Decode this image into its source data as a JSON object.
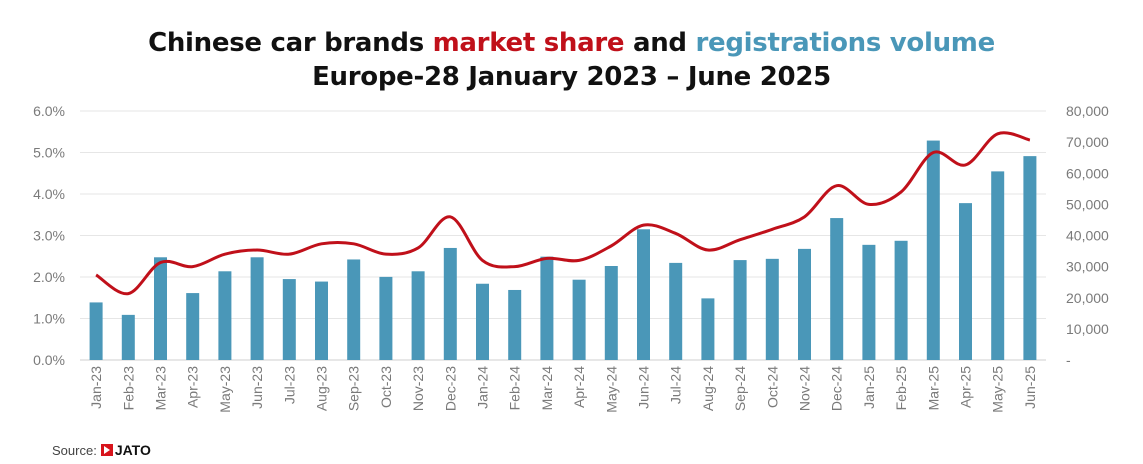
{
  "title": {
    "part1": "Chinese car brands ",
    "part2": "market share",
    "part3": " and ",
    "part4": "registrations volume",
    "line2": "Europe-28 January 2023 – June 2025"
  },
  "source": {
    "label": "Source:",
    "brand": "JATO"
  },
  "colors": {
    "bar": "#4a97b8",
    "line": "#c0101a",
    "grid": "#e6e6e6"
  },
  "chart_data": {
    "type": "bar",
    "categories": [
      "Jan-23",
      "Feb-23",
      "Mar-23",
      "Apr-23",
      "May-23",
      "Jun-23",
      "Jul-23",
      "Aug-23",
      "Sep-23",
      "Oct-23",
      "Nov-23",
      "Dec-23",
      "Jan-24",
      "Feb-24",
      "Mar-24",
      "Apr-24",
      "May-24",
      "Jun-24",
      "Jul-24",
      "Aug-24",
      "Sep-24",
      "Oct-24",
      "Nov-24",
      "Dec-24",
      "Jan-25",
      "Feb-25",
      "Mar-25",
      "Apr-25",
      "May-25",
      "Jun-25"
    ],
    "series": [
      {
        "name": "registrations volume",
        "type": "bar",
        "axis": "right",
        "values": [
          18500,
          14500,
          33000,
          21500,
          28500,
          33000,
          26000,
          25200,
          32300,
          26700,
          28500,
          36000,
          24500,
          22500,
          33200,
          25800,
          30200,
          42000,
          31200,
          19800,
          32100,
          32500,
          35700,
          45600,
          37000,
          38300,
          70500,
          50400,
          60600,
          65500
        ]
      },
      {
        "name": "market share",
        "type": "line",
        "axis": "left",
        "values": [
          2.05,
          1.6,
          2.35,
          2.25,
          2.55,
          2.65,
          2.55,
          2.8,
          2.8,
          2.55,
          2.7,
          3.45,
          2.4,
          2.25,
          2.45,
          2.4,
          2.75,
          3.25,
          3.05,
          2.65,
          2.9,
          3.15,
          3.45,
          4.2,
          3.75,
          4.05,
          5.0,
          4.7,
          5.45,
          5.3
        ]
      }
    ],
    "y_left": {
      "min": 0,
      "max": 6,
      "ticks": [
        "0.0%",
        "1.0%",
        "2.0%",
        "3.0%",
        "4.0%",
        "5.0%",
        "6.0%"
      ]
    },
    "y_right": {
      "min": 0,
      "max": 80000,
      "ticks": [
        "-",
        "10,000",
        "20,000",
        "30,000",
        "40,000",
        "50,000",
        "60,000",
        "70,000",
        "80,000"
      ]
    },
    "grid": true,
    "legend": "none"
  }
}
